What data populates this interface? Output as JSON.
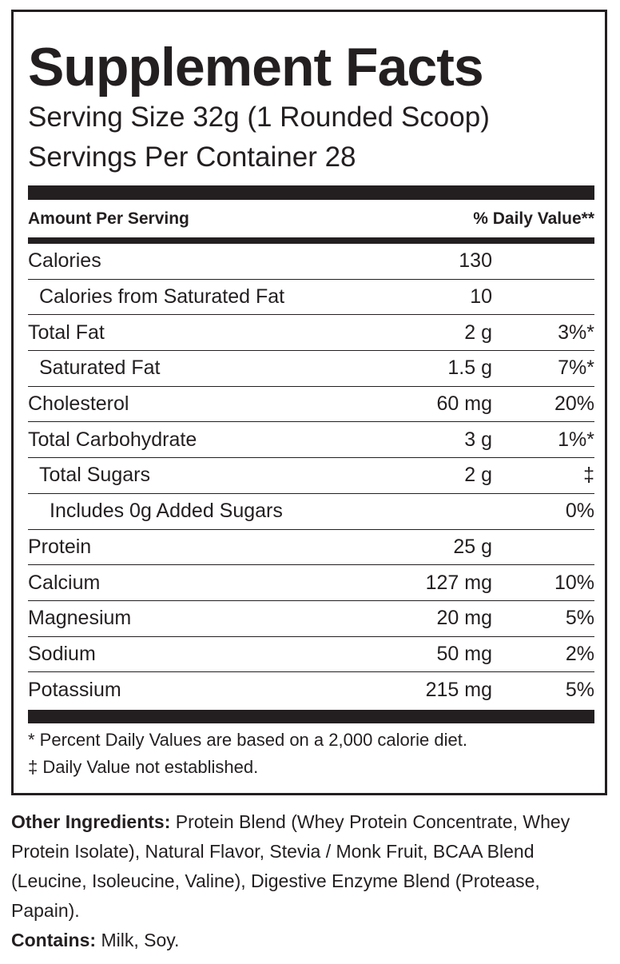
{
  "label": {
    "title": "Supplement Facts",
    "serving_size": "Serving Size 32g (1 Rounded Scoop)",
    "servings_per_container": "Servings Per Container  28",
    "header": {
      "amount": "Amount Per Serving",
      "dv": "% Daily Value**"
    },
    "rows": [
      {
        "name": "Calories",
        "amount": "130"
      },
      {
        "name": "Calories from Saturated Fat",
        "amount": "10"
      },
      {
        "name": "Total Fat",
        "amount": "2 g",
        "dv": "3%*"
      },
      {
        "name": "Saturated Fat",
        "amount": "1.5 g",
        "dv": "7%*"
      },
      {
        "name": "Cholesterol",
        "amount": "60 mg",
        "dv": "20%"
      },
      {
        "name": "Total Carbohydrate",
        "amount": "3 g",
        "dv": "1%*"
      },
      {
        "name": "Total Sugars",
        "amount": "2 g",
        "dv": "‡"
      },
      {
        "name": "Includes 0g Added Sugars",
        "dv": "0%"
      },
      {
        "name": "Protein",
        "amount": "25 g"
      },
      {
        "name": "Calcium",
        "amount": "127 mg",
        "dv": "10%"
      },
      {
        "name": "Magnesium",
        "amount": "20 mg",
        "dv": "5%"
      },
      {
        "name": "Sodium",
        "amount": "50 mg",
        "dv": "2%"
      },
      {
        "name": "Potassium",
        "amount": "215 mg",
        "dv": "5%"
      }
    ],
    "footnotes": [
      "* Percent Daily Values are based on a 2,000 calorie diet.",
      "‡ Daily Value not established."
    ]
  },
  "ingredients": {
    "label": "Other Ingredients:",
    "text": "Protein Blend (Whey Protein Concentrate, Whey Protein Isolate), Natural Flavor, Stevia / Monk Fruit, BCAA Blend (Leucine, Isoleucine, Valine), Digestive Enzyme Blend (Protease, Papain).",
    "contains_label": "Contains:",
    "contains_text": "Milk, Soy."
  }
}
